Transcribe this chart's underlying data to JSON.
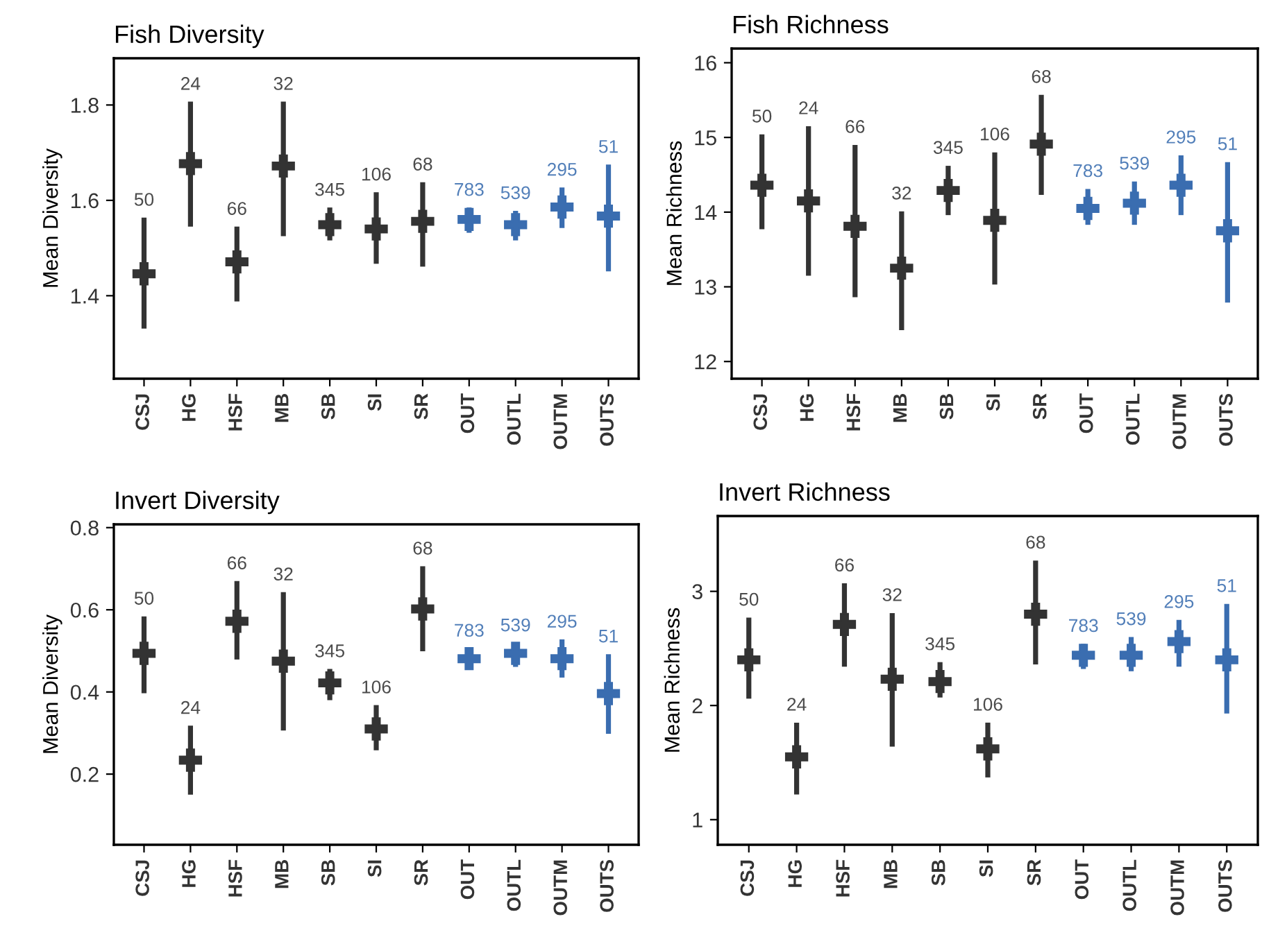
{
  "chart_data": [
    {
      "type": "scatter",
      "title": "Fish Diversity",
      "ylabel": "Mean Diversity",
      "categories": [
        "CSJ",
        "HG",
        "HSF",
        "MB",
        "SB",
        "SI",
        "SR",
        "OUT",
        "OUTL",
        "OUTM",
        "OUTS"
      ],
      "values": [
        1.446,
        1.677,
        1.471,
        1.672,
        1.549,
        1.54,
        1.556,
        1.56,
        1.549,
        1.586,
        1.567
      ],
      "errors": [
        [
          1.331,
          1.564
        ],
        [
          1.545,
          1.807
        ],
        [
          1.388,
          1.545
        ],
        [
          1.525,
          1.807
        ],
        [
          1.516,
          1.585
        ],
        [
          1.467,
          1.617
        ],
        [
          1.461,
          1.638
        ],
        [
          1.532,
          1.585
        ],
        [
          1.516,
          1.578
        ],
        [
          1.542,
          1.627
        ],
        [
          1.451,
          1.675
        ]
      ],
      "colors": [
        "#333333",
        "#333333",
        "#333333",
        "#333333",
        "#333333",
        "#333333",
        "#333333",
        "#3a6db0",
        "#3a6db0",
        "#3a6db0",
        "#3a6db0"
      ],
      "annotations": [
        {
          "text": "50",
          "x": "CSJ",
          "y": 1.564
        },
        {
          "text": "24",
          "x": "HG",
          "y": 1.807
        },
        {
          "text": "66",
          "x": "HSF",
          "y": 1.545
        },
        {
          "text": "32",
          "x": "MB",
          "y": 1.807
        },
        {
          "text": "345",
          "x": "SB",
          "y": 1.585
        },
        {
          "text": "106",
          "x": "SI",
          "y": 1.617
        },
        {
          "text": "68",
          "x": "SR",
          "y": 1.638
        },
        {
          "text": "783",
          "x": "OUT",
          "y": 1.585
        },
        {
          "text": "539",
          "x": "OUTL",
          "y": 1.578
        },
        {
          "text": "295",
          "x": "OUTM",
          "y": 1.627
        },
        {
          "text": "51",
          "x": "OUTS",
          "y": 1.675
        }
      ],
      "ylim": [
        1.226,
        1.898
      ],
      "yticks": [
        1.4,
        1.6,
        1.8
      ],
      "marker": "cross",
      "grid": false,
      "legend": false
    },
    {
      "type": "scatter",
      "title": "Fish Richness",
      "ylabel": "Mean Richness",
      "categories": [
        "CSJ",
        "HG",
        "HSF",
        "MB",
        "SB",
        "SI",
        "SR",
        "OUT",
        "OUTL",
        "OUTM",
        "OUTS"
      ],
      "values": [
        14.36,
        14.15,
        13.81,
        13.25,
        14.29,
        13.89,
        14.91,
        14.05,
        14.12,
        14.36,
        13.75
      ],
      "errors": [
        [
          13.77,
          15.04
        ],
        [
          13.15,
          15.15
        ],
        [
          12.86,
          14.9
        ],
        [
          12.42,
          14.01
        ],
        [
          13.96,
          14.62
        ],
        [
          13.03,
          14.8
        ],
        [
          14.23,
          15.57
        ],
        [
          13.83,
          14.31
        ],
        [
          13.83,
          14.41
        ],
        [
          13.96,
          14.76
        ],
        [
          12.79,
          14.67
        ]
      ],
      "colors": [
        "#333333",
        "#333333",
        "#333333",
        "#333333",
        "#333333",
        "#333333",
        "#333333",
        "#3a6db0",
        "#3a6db0",
        "#3a6db0",
        "#3a6db0"
      ],
      "annotations": [
        {
          "text": "50",
          "x": "CSJ",
          "y": 15.04
        },
        {
          "text": "24",
          "x": "HG",
          "y": 15.15
        },
        {
          "text": "66",
          "x": "HSF",
          "y": 14.9
        },
        {
          "text": "32",
          "x": "MB",
          "y": 14.01
        },
        {
          "text": "345",
          "x": "SB",
          "y": 14.62
        },
        {
          "text": "106",
          "x": "SI",
          "y": 14.8
        },
        {
          "text": "68",
          "x": "SR",
          "y": 15.57
        },
        {
          "text": "783",
          "x": "OUT",
          "y": 14.31
        },
        {
          "text": "539",
          "x": "OUTL",
          "y": 14.41
        },
        {
          "text": "295",
          "x": "OUTM",
          "y": 14.76
        },
        {
          "text": "51",
          "x": "OUTS",
          "y": 14.67
        }
      ],
      "ylim": [
        11.77,
        16.19
      ],
      "yticks": [
        12,
        13,
        14,
        15,
        16
      ],
      "marker": "cross",
      "grid": false,
      "legend": false
    },
    {
      "type": "scatter",
      "title": "Invert Diversity",
      "ylabel": "Mean Diversity",
      "categories": [
        "CSJ",
        "HG",
        "HSF",
        "MB",
        "SB",
        "SI",
        "SR",
        "OUT",
        "OUTL",
        "OUTM",
        "OUTS"
      ],
      "values": [
        0.494,
        0.234,
        0.572,
        0.475,
        0.422,
        0.31,
        0.602,
        0.481,
        0.494,
        0.481,
        0.396
      ],
      "errors": [
        [
          0.397,
          0.584
        ],
        [
          0.15,
          0.318
        ],
        [
          0.479,
          0.67
        ],
        [
          0.306,
          0.643
        ],
        [
          0.38,
          0.456
        ],
        [
          0.258,
          0.368
        ],
        [
          0.499,
          0.706
        ],
        [
          0.454,
          0.506
        ],
        [
          0.461,
          0.519
        ],
        [
          0.435,
          0.528
        ],
        [
          0.298,
          0.492
        ]
      ],
      "colors": [
        "#333333",
        "#333333",
        "#333333",
        "#333333",
        "#333333",
        "#333333",
        "#333333",
        "#3a6db0",
        "#3a6db0",
        "#3a6db0",
        "#3a6db0"
      ],
      "annotations": [
        {
          "text": "50",
          "x": "CSJ",
          "y": 0.584
        },
        {
          "text": "24",
          "x": "HG",
          "y": 0.318
        },
        {
          "text": "66",
          "x": "HSF",
          "y": 0.67
        },
        {
          "text": "32",
          "x": "MB",
          "y": 0.643
        },
        {
          "text": "345",
          "x": "SB",
          "y": 0.456
        },
        {
          "text": "106",
          "x": "SI",
          "y": 0.368
        },
        {
          "text": "68",
          "x": "SR",
          "y": 0.706
        },
        {
          "text": "783",
          "x": "OUT",
          "y": 0.506
        },
        {
          "text": "539",
          "x": "OUTL",
          "y": 0.519
        },
        {
          "text": "295",
          "x": "OUTM",
          "y": 0.528
        },
        {
          "text": "51",
          "x": "OUTS",
          "y": 0.492
        }
      ],
      "ylim": [
        0.028,
        0.808
      ],
      "yticks": [
        0.2,
        0.4,
        0.6,
        0.8
      ],
      "marker": "cross",
      "grid": false,
      "legend": false
    },
    {
      "type": "scatter",
      "title": "Invert Richness",
      "ylabel": "Mean Richness",
      "categories": [
        "CSJ",
        "HG",
        "HSF",
        "MB",
        "SB",
        "SI",
        "SR",
        "OUT",
        "OUTL",
        "OUTM",
        "OUTS"
      ],
      "values": [
        2.4,
        1.55,
        2.71,
        2.23,
        2.21,
        1.62,
        2.8,
        2.44,
        2.44,
        2.56,
        2.4
      ],
      "errors": [
        [
          2.06,
          2.77
        ],
        [
          1.22,
          1.85
        ],
        [
          2.34,
          3.07
        ],
        [
          1.64,
          2.81
        ],
        [
          2.07,
          2.38
        ],
        [
          1.37,
          1.85
        ],
        [
          2.36,
          3.27
        ],
        [
          2.32,
          2.54
        ],
        [
          2.3,
          2.6
        ],
        [
          2.34,
          2.75
        ],
        [
          1.93,
          2.89
        ]
      ],
      "colors": [
        "#333333",
        "#333333",
        "#333333",
        "#333333",
        "#333333",
        "#333333",
        "#333333",
        "#3a6db0",
        "#3a6db0",
        "#3a6db0",
        "#3a6db0"
      ],
      "annotations": [
        {
          "text": "50",
          "x": "CSJ",
          "y": 2.77
        },
        {
          "text": "24",
          "x": "HG",
          "y": 1.85
        },
        {
          "text": "66",
          "x": "HSF",
          "y": 3.07
        },
        {
          "text": "32",
          "x": "MB",
          "y": 2.81
        },
        {
          "text": "345",
          "x": "SB",
          "y": 2.38
        },
        {
          "text": "106",
          "x": "SI",
          "y": 1.85
        },
        {
          "text": "68",
          "x": "SR",
          "y": 3.27
        },
        {
          "text": "783",
          "x": "OUT",
          "y": 2.54
        },
        {
          "text": "539",
          "x": "OUTL",
          "y": 2.6
        },
        {
          "text": "295",
          "x": "OUTM",
          "y": 2.75
        },
        {
          "text": "51",
          "x": "OUTS",
          "y": 2.89
        }
      ],
      "ylim": [
        0.78,
        3.66
      ],
      "yticks": [
        1,
        2,
        3
      ],
      "marker": "cross",
      "grid": false,
      "legend": false
    }
  ]
}
